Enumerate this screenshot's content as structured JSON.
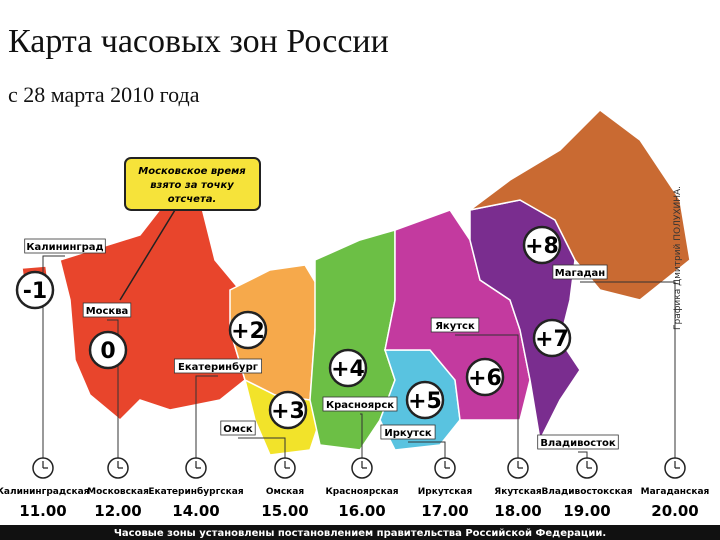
{
  "header": {
    "title": "Карта часовых зон России",
    "subtitle": "с 28 марта 2010 года"
  },
  "note": [
    "Московское время",
    "взято за точку",
    "отсчета."
  ],
  "credit": "Графика Дмитрий ПОЛУХИНА.",
  "zones": [
    {
      "offset": "-1",
      "city": "Калининград",
      "clock_label": "Калининградская",
      "time": "11.00"
    },
    {
      "offset": "0",
      "city": "Москва",
      "clock_label": "Московская",
      "time": "12.00"
    },
    {
      "offset": "+2",
      "city": "Екатеринбург",
      "clock_label": "Екатеринбургская",
      "time": "14.00"
    },
    {
      "offset": "+3",
      "city": "Омск",
      "clock_label": "Омская",
      "time": "15.00"
    },
    {
      "offset": "+4",
      "city": "Красноярск",
      "clock_label": "Красноярская",
      "time": "16.00"
    },
    {
      "offset": "+5",
      "city": "Иркутск",
      "clock_label": "Иркутская",
      "time": "17.00"
    },
    {
      "offset": "+6",
      "city": "Якутск",
      "clock_label": "Якутская",
      "time": "18.00"
    },
    {
      "offset": "+7",
      "city": "Владивосток",
      "clock_label": "Владивостокская",
      "time": "19.00"
    },
    {
      "offset": "+8",
      "city": "Магадан",
      "clock_label": "Магаданская",
      "time": "20.00"
    }
  ],
  "footer": "Часовые зоны установлены постановлением правительства Российской Федерации."
}
